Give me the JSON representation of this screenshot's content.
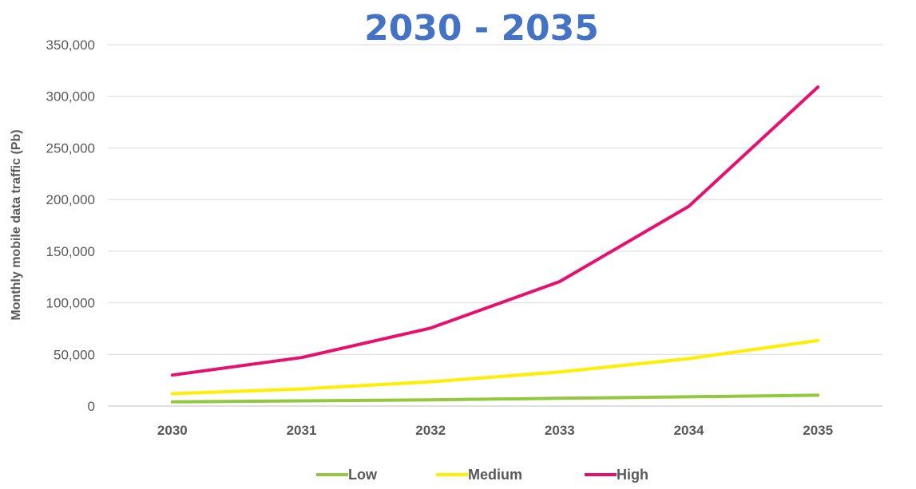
{
  "chart_data": {
    "type": "line",
    "title": "2030 - 2035",
    "ylabel": "Monthly mobile data traffic (Pb)",
    "xlabel": "",
    "categories": [
      "2030",
      "2031",
      "2032",
      "2033",
      "2034",
      "2035"
    ],
    "ylim": [
      0,
      350000
    ],
    "yticks": [
      0,
      50000,
      100000,
      150000,
      200000,
      250000,
      300000,
      350000
    ],
    "ytick_labels": [
      "0",
      "50,000",
      "100,000",
      "150,000",
      "200,000",
      "250,000",
      "300,000",
      "350,000"
    ],
    "grid": true,
    "legend_position": "bottom",
    "series": [
      {
        "name": "Low",
        "color": "#92c83e",
        "values": [
          4000,
          5000,
          6000,
          7500,
          9000,
          10500
        ]
      },
      {
        "name": "Medium",
        "color": "#ffee00",
        "values": [
          12000,
          16500,
          23500,
          33000,
          46000,
          63500
        ]
      },
      {
        "name": "High",
        "color": "#e8106e",
        "values": [
          30000,
          47000,
          75500,
          120500,
          193500,
          309000
        ]
      }
    ]
  }
}
